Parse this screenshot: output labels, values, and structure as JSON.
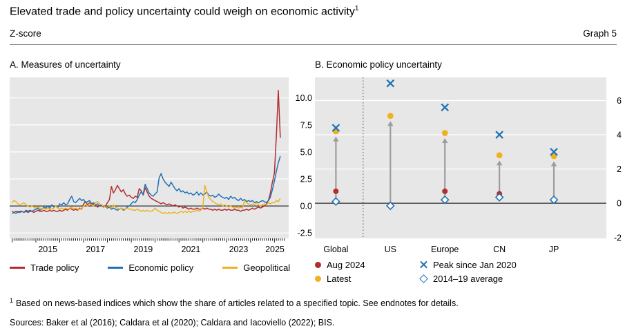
{
  "page": {
    "title": "Elevated trade and policy uncertainty could weigh on economic activity",
    "title_marker": "1",
    "unit_label": "Z-score",
    "graph_label": "Graph 5",
    "footnote_marker": "1",
    "footnote_text": "Based on news-based indices which show the share of articles related to a specified topic. See endnotes for details.",
    "sources_text": "Sources: Baker et al (2016); Caldara et al (2020); Caldara and Iacoviello (2022); BIS."
  },
  "colors": {
    "red": "#b22d30",
    "blue": "#2171b5",
    "yellow": "#efb21e",
    "panel_bg": "#e7e7e7",
    "grid": "#ffffff",
    "zero_line": "#000000",
    "arrow": "#9d9d9d",
    "axis_text": "#000000"
  },
  "chart_data": [
    {
      "id": "A",
      "type": "line",
      "title": "A. Measures of uncertainty",
      "unit": "Z-score",
      "xlim": [
        2013.9,
        2025.6
      ],
      "ylim": [
        -3.0,
        11.9
      ],
      "yticks": [
        10.0,
        7.5,
        5.0,
        2.5,
        0.0,
        -2.5
      ],
      "ytick_labels": [
        "10.0",
        "7.5",
        "5.0",
        "2.5",
        "0.0",
        "-2.5"
      ],
      "xticks": [
        2015,
        2017,
        2019,
        2021,
        2023,
        2025
      ],
      "x_start": 2014.0,
      "x_step": "monthly",
      "series": [
        {
          "name": "Trade policy",
          "color_key": "red",
          "values": [
            -0.5,
            -0.6,
            -0.5,
            -0.6,
            -0.5,
            -0.5,
            -0.6,
            -0.5,
            -0.6,
            -0.5,
            -0.5,
            -0.6,
            -0.5,
            -0.4,
            -0.5,
            -0.5,
            -0.4,
            -0.5,
            -0.5,
            -0.4,
            -0.5,
            -0.4,
            -0.5,
            -0.5,
            -0.4,
            -0.5,
            -0.4,
            -0.3,
            -0.4,
            -0.2,
            -0.3,
            -0.4,
            -0.3,
            -0.4,
            -0.2,
            -0.3,
            0.2,
            0.4,
            0.1,
            0.3,
            0.0,
            0.2,
            0.1,
            -0.1,
            0.0,
            0.1,
            -0.1,
            0.0,
            0.3,
            0.6,
            1.8,
            1.2,
            1.5,
            1.9,
            1.6,
            1.3,
            1.5,
            1.1,
            0.9,
            1.0,
            0.8,
            0.7,
            0.9,
            0.8,
            1.6,
            1.4,
            1.0,
            1.7,
            1.3,
            0.9,
            0.7,
            0.6,
            0.5,
            0.4,
            0.3,
            0.2,
            0.3,
            0.2,
            0.1,
            0.2,
            0.1,
            0.0,
            0.1,
            0.0,
            -0.1,
            0.0,
            -0.2,
            -0.1,
            -0.2,
            -0.3,
            -0.2,
            -0.3,
            -0.3,
            -0.2,
            -0.3,
            -0.3,
            -0.2,
            -0.3,
            -0.2,
            -0.3,
            -0.3,
            -0.4,
            -0.3,
            -0.4,
            -0.3,
            -0.4,
            -0.4,
            -0.3,
            -0.4,
            -0.3,
            -0.4,
            -0.4,
            -0.3,
            -0.4,
            -0.4,
            -0.5,
            -0.4,
            -0.4,
            -0.3,
            -0.4,
            -0.3,
            -0.2,
            -0.3,
            -0.2,
            -0.1,
            -0.2,
            -0.1,
            0.0,
            0.2,
            0.5,
            1.2,
            2.2,
            3.0,
            6.5,
            10.7,
            6.3
          ]
        },
        {
          "name": "Economic policy",
          "color_key": "blue",
          "values": [
            -0.7,
            -0.6,
            -0.7,
            -0.5,
            -0.6,
            -0.5,
            -0.6,
            -0.4,
            -0.5,
            -0.4,
            -0.5,
            -0.4,
            -0.3,
            -0.2,
            -0.4,
            -0.3,
            -0.1,
            -0.2,
            0.0,
            -0.2,
            0.1,
            -0.1,
            0.0,
            -0.2,
            0.2,
            0.1,
            0.3,
            0.1,
            0.2,
            0.6,
            0.9,
            0.4,
            0.3,
            0.5,
            0.7,
            0.5,
            0.6,
            0.3,
            0.4,
            0.5,
            0.2,
            0.3,
            0.1,
            0.2,
            0.0,
            0.1,
            0.0,
            -0.1,
            -0.2,
            -0.1,
            -0.3,
            -0.2,
            -0.3,
            -0.4,
            -0.3,
            -0.2,
            -0.4,
            -0.3,
            -0.1,
            0.0,
            0.2,
            0.4,
            0.3,
            0.6,
            1.0,
            1.3,
            1.1,
            2.0,
            1.6,
            1.2,
            1.0,
            0.9,
            1.1,
            1.3,
            2.6,
            3.0,
            2.5,
            2.2,
            2.0,
            1.8,
            2.2,
            1.9,
            1.6,
            1.4,
            1.6,
            1.3,
            1.4,
            1.2,
            1.3,
            1.1,
            1.2,
            1.0,
            1.1,
            1.3,
            1.0,
            1.2,
            1.0,
            1.1,
            1.3,
            1.0,
            0.9,
            1.0,
            0.8,
            0.9,
            1.1,
            0.9,
            0.8,
            0.7,
            0.8,
            0.6,
            0.9,
            0.7,
            0.8,
            0.6,
            0.5,
            0.7,
            0.5,
            0.6,
            0.4,
            0.5,
            0.4,
            0.5,
            0.3,
            0.4,
            0.3,
            0.4,
            0.5,
            0.4,
            0.3,
            0.5,
            0.8,
            1.5,
            2.3,
            3.2,
            4.0,
            4.6
          ]
        },
        {
          "name": "Geopolitical",
          "color_key": "yellow",
          "values": [
            0.3,
            0.5,
            0.4,
            0.2,
            0.1,
            0.2,
            0.3,
            0.1,
            0.0,
            -0.1,
            0.0,
            -0.1,
            -0.2,
            -0.1,
            -0.2,
            -0.3,
            -0.2,
            -0.3,
            -0.2,
            -0.3,
            -0.3,
            -0.2,
            0.0,
            -0.2,
            -0.3,
            -0.2,
            -0.3,
            -0.2,
            -0.3,
            -0.2,
            -0.1,
            -0.3,
            -0.2,
            -0.3,
            -0.3,
            -0.2,
            0.0,
            0.1,
            0.0,
            0.2,
            0.1,
            0.0,
            0.3,
            0.4,
            0.2,
            0.1,
            0.0,
            -0.1,
            -0.1,
            0.0,
            -0.2,
            0.1,
            -0.1,
            -0.2,
            -0.3,
            -0.2,
            -0.3,
            -0.3,
            -0.2,
            -0.3,
            -0.3,
            -0.4,
            -0.4,
            -0.3,
            -0.4,
            -0.5,
            -0.4,
            -0.5,
            -0.4,
            -0.5,
            -0.5,
            -0.4,
            -0.2,
            -0.4,
            -0.5,
            -0.6,
            -0.7,
            -0.6,
            -0.7,
            -0.6,
            -0.7,
            -0.6,
            -0.6,
            -0.7,
            -0.6,
            -0.5,
            -0.6,
            -0.5,
            -0.6,
            -0.5,
            -0.6,
            -0.5,
            -0.5,
            -0.4,
            -0.5,
            -0.4,
            -0.1,
            1.9,
            1.3,
            0.8,
            0.6,
            0.4,
            0.3,
            0.2,
            0.1,
            0.2,
            0.0,
            0.1,
            0.0,
            -0.1,
            0.0,
            -0.1,
            -0.2,
            -0.1,
            -0.2,
            -0.1,
            -0.2,
            0.5,
            0.3,
            0.2,
            0.1,
            0.2,
            0.1,
            0.3,
            0.1,
            0.0,
            0.1,
            0.2,
            0.1,
            0.3,
            0.2,
            0.3,
            0.3,
            0.5,
            0.4,
            0.7
          ]
        }
      ]
    },
    {
      "id": "B",
      "type": "scatter",
      "title": "B. Economic policy uncertainty",
      "categories": [
        "Global",
        "US",
        "Europe",
        "CN",
        "JP"
      ],
      "ylim": [
        -2.05,
        7.35
      ],
      "yticks": [
        6,
        4,
        2,
        0,
        -2
      ],
      "ytick_labels": [
        "6",
        "4",
        "2",
        "0",
        "-2"
      ],
      "separator_after_index": 0,
      "series": [
        {
          "name": "Aug 2024",
          "marker": "circle",
          "color_key": "red",
          "values": [
            0.7,
            -0.1,
            0.7,
            0.55,
            0.15
          ]
        },
        {
          "name": "Latest",
          "marker": "circle",
          "color_key": "yellow",
          "values": [
            4.2,
            5.1,
            4.1,
            2.8,
            2.75
          ]
        },
        {
          "name": "Peak since Jan 2020",
          "marker": "x",
          "color_key": "blue",
          "values": [
            4.4,
            7.0,
            5.6,
            4.0,
            3.0
          ]
        },
        {
          "name": "2014–19 average",
          "marker": "diamond",
          "color_key": "blue",
          "values": [
            0.1,
            -0.15,
            0.2,
            0.35,
            0.2
          ]
        }
      ],
      "arrows": {
        "from": "2014–19 average",
        "to": "Latest"
      }
    }
  ]
}
